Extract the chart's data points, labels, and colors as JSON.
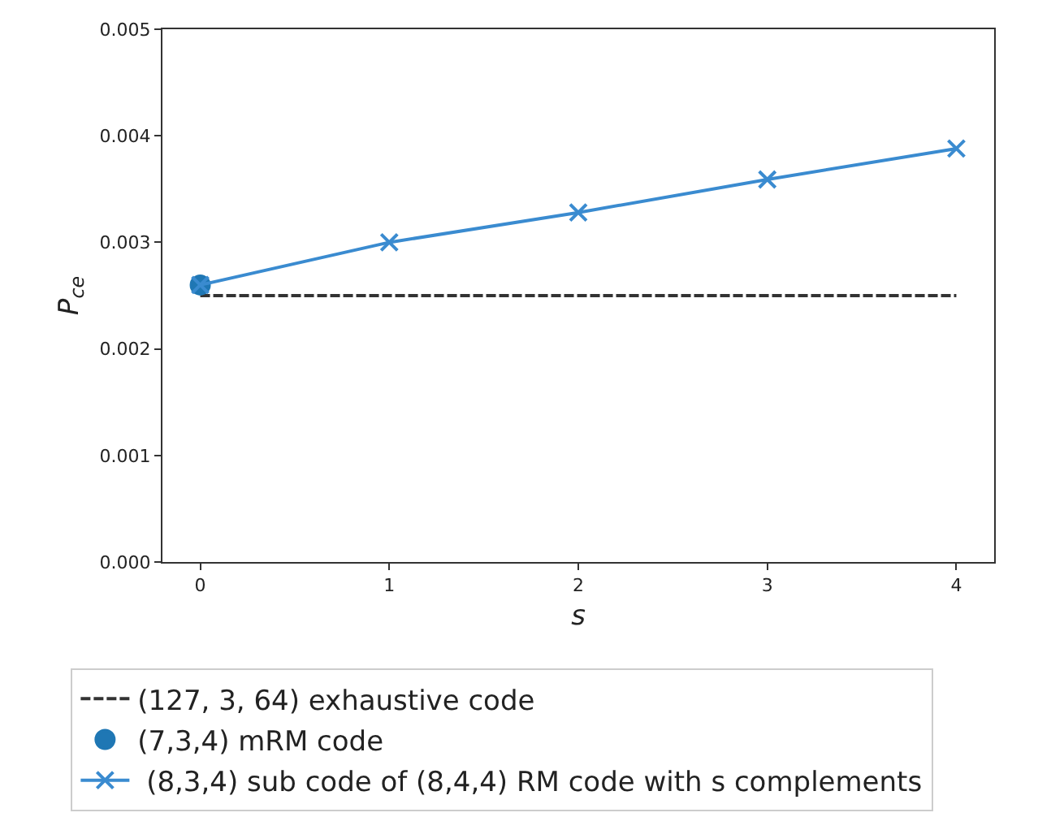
{
  "chart_data": {
    "type": "line",
    "xlabel": "s",
    "ylabel": "P$_{ce}$",
    "series": [
      {
        "name": "(127, 3, 64) exhaustive code",
        "color": "#333333",
        "x": [
          0,
          4
        ],
        "values": [
          0.0025,
          0.0025
        ],
        "line_style": "dashed",
        "marker": "none"
      },
      {
        "name": "(7,3,4) mRM code",
        "color": "#1f77b4",
        "type": "scatter",
        "x": [
          0
        ],
        "values": [
          0.0026
        ],
        "marker": "circle"
      },
      {
        "name": " (8,3,4) sub code of (8,4,4) RM code with s complements",
        "color": "#3a8bd0",
        "x": [
          0,
          1,
          2,
          3,
          4
        ],
        "values": [
          0.0026,
          0.003,
          0.00328,
          0.00359,
          0.00388
        ],
        "marker": "cross",
        "line_style": "solid"
      }
    ],
    "xlim": [
      -0.2,
      4.2
    ],
    "xticks": [
      0,
      1,
      2,
      3,
      4
    ],
    "ylim": [
      0,
      0.005
    ],
    "yticks": [
      {
        "value": 0,
        "label": "0.000"
      },
      {
        "value": 0.001,
        "label": "0.001"
      },
      {
        "value": 0.002,
        "label": "0.002"
      },
      {
        "value": 0.003,
        "label": "0.003"
      },
      {
        "value": 0.004,
        "label": "0.004"
      },
      {
        "value": 0.005,
        "label": "0.005"
      }
    ],
    "grid": false,
    "legend": "bottom"
  }
}
